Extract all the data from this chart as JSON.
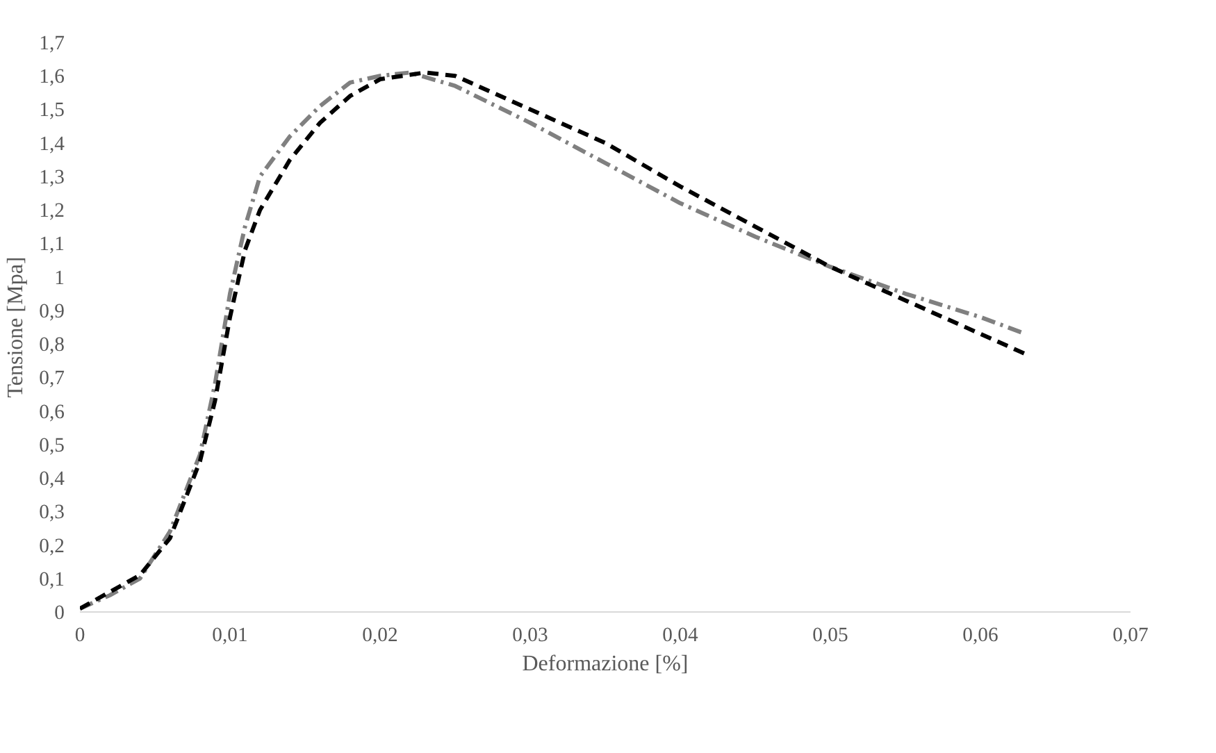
{
  "chart_data": {
    "type": "line",
    "xlabel": "Deformazione [%]",
    "ylabel": "Tensione [Mpa]",
    "xlim": [
      0,
      0.07
    ],
    "ylim": [
      0,
      1.7
    ],
    "xticks": [
      0,
      {
        "value": 0.01,
        "label": "0,01"
      },
      {
        "value": 0.02,
        "label": "0,02"
      },
      {
        "value": 0.03,
        "label": "0,03"
      },
      {
        "value": 0.04,
        "label": "0,04"
      },
      {
        "value": 0.05,
        "label": "0,05"
      },
      {
        "value": 0.06,
        "label": "0,06"
      },
      {
        "value": 0.07,
        "label": "0,07"
      }
    ],
    "yticks": [
      0,
      {
        "value": 0.1,
        "label": "0,1"
      },
      {
        "value": 0.2,
        "label": "0,2"
      },
      {
        "value": 0.3,
        "label": "0,3"
      },
      {
        "value": 0.4,
        "label": "0,4"
      },
      {
        "value": 0.5,
        "label": "0,5"
      },
      {
        "value": 0.6,
        "label": "0,6"
      },
      {
        "value": 0.7,
        "label": "0,7"
      },
      {
        "value": 0.8,
        "label": "0,8"
      },
      {
        "value": 0.9,
        "label": "0,9"
      },
      1,
      {
        "value": 1.1,
        "label": "1,1"
      },
      {
        "value": 1.2,
        "label": "1,2"
      },
      {
        "value": 1.3,
        "label": "1,3"
      },
      {
        "value": 1.4,
        "label": "1,4"
      },
      {
        "value": 1.5,
        "label": "1,5"
      },
      {
        "value": 1.6,
        "label": "1,6"
      },
      {
        "value": 1.7,
        "label": "1,7"
      }
    ],
    "grid": false,
    "marker": "none",
    "series": [
      {
        "color": "#808080",
        "line_style": "dashdot",
        "x": [
          0,
          0.002,
          0.004,
          0.006,
          0.008,
          0.009,
          0.01,
          0.011,
          0.012,
          0.014,
          0.016,
          0.018,
          0.02,
          0.022,
          0.025,
          0.03,
          0.035,
          0.04,
          0.045,
          0.05,
          0.055,
          0.06,
          0.063
        ],
        "values": [
          0.01,
          0.05,
          0.1,
          0.24,
          0.47,
          0.68,
          0.95,
          1.15,
          1.3,
          1.42,
          1.51,
          1.58,
          1.6,
          1.61,
          1.57,
          1.46,
          1.34,
          1.22,
          1.12,
          1.03,
          0.95,
          0.88,
          0.83
        ]
      },
      {
        "color": "#000000",
        "line_style": "dashed",
        "x": [
          0,
          0.002,
          0.004,
          0.006,
          0.008,
          0.009,
          0.01,
          0.011,
          0.012,
          0.014,
          0.016,
          0.018,
          0.02,
          0.023,
          0.025,
          0.03,
          0.035,
          0.04,
          0.045,
          0.05,
          0.055,
          0.06,
          0.063
        ],
        "values": [
          0.01,
          0.06,
          0.11,
          0.22,
          0.45,
          0.63,
          0.88,
          1.08,
          1.2,
          1.35,
          1.46,
          1.54,
          1.59,
          1.61,
          1.6,
          1.5,
          1.4,
          1.27,
          1.15,
          1.03,
          0.93,
          0.83,
          0.77
        ]
      }
    ]
  }
}
